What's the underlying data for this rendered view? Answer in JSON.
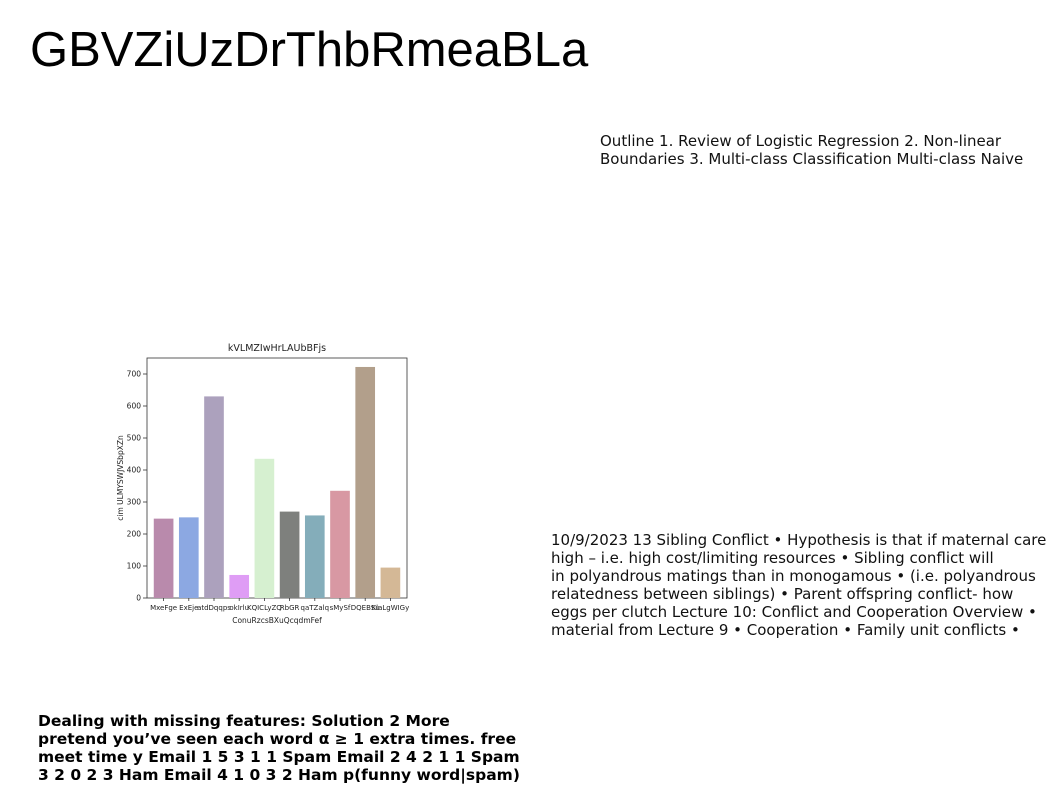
{
  "heading": "GBVZiUzDrThbRmeaBLa",
  "outline": {
    "lines": [
      "Outline 1. Review of Logistic Regression 2. Non-linear",
      "Boundaries 3. Multi-class Classification Multi-class Naive"
    ]
  },
  "sibling": {
    "lines": [
      "10/9/2023 13 Sibling Conflict • Hypothesis is that if maternal care",
      "high – i.e. high cost/limiting resources • Sibling conflict will",
      "in polyandrous matings than in monogamous • (i.e. polyandrous",
      "relatedness between siblings) • Parent offspring conflict- how",
      "eggs per clutch Lecture 10: Conflict and Cooperation Overview •",
      "material from Lecture 9 • Cooperation • Family unit conflicts •"
    ]
  },
  "missing": {
    "lines": [
      "Dealing with missing features: Solution 2 More",
      "pretend you’ve seen each word α ≥ 1 extra times. free",
      "meet time y Email 1 5 3 1 1 Spam Email 2 4 2 1 1 Spam",
      "3 2 0 2 3 Ham Email 4 1 0 3 2 Ham p(funny word|spam)"
    ]
  },
  "chart_data": {
    "type": "bar",
    "title": "kVLMZIwHrLAUbBFjs",
    "xlabel": "ConuRzcsBXuQcqdmFef",
    "ylabel": "cim ULMYSWJVSbpXZn",
    "categories": [
      "MxeFge",
      "ExEje",
      "atdDqqps",
      "okIrlu",
      "KQICLyZQ",
      "RbGR",
      "qaTZalq",
      "sMySf",
      "DQEBSu",
      "KlaLgWIGy"
    ],
    "values": [
      248,
      252,
      630,
      72,
      435,
      270,
      258,
      335,
      722,
      95
    ],
    "colors": [
      "#b98aac",
      "#8ca8e2",
      "#aca1bd",
      "#df9df5",
      "#d6f0d0",
      "#7e807d",
      "#84adba",
      "#d898a3",
      "#b29f8b",
      "#d4b896"
    ],
    "ylim": [
      0,
      750
    ],
    "yticks": [
      0,
      100,
      200,
      300,
      400,
      500,
      600,
      700
    ]
  }
}
